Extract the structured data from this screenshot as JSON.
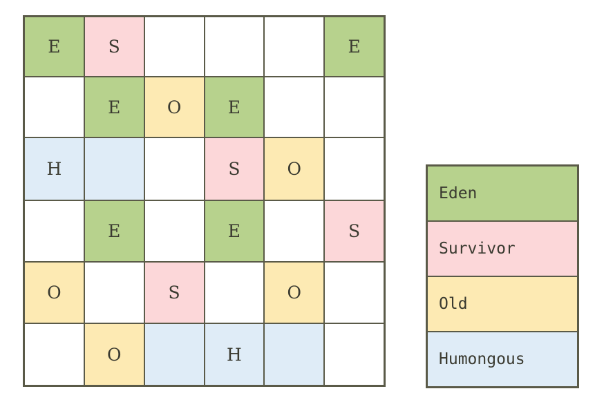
{
  "colors": {
    "eden": "#b7d28d",
    "survivor": "#fcd7d9",
    "old": "#fdeab3",
    "humongous": "#dfecf7",
    "free": "#ffffff"
  },
  "legend": [
    {
      "type": "eden",
      "label": "Eden"
    },
    {
      "type": "survivor",
      "label": "Survivor"
    },
    {
      "type": "old",
      "label": "Old"
    },
    {
      "type": "humongous",
      "label": "Humongous"
    }
  ],
  "grid": [
    [
      {
        "type": "eden",
        "label": "E"
      },
      {
        "type": "survivor",
        "label": "S"
      },
      {
        "type": "free",
        "label": ""
      },
      {
        "type": "free",
        "label": ""
      },
      {
        "type": "free",
        "label": ""
      },
      {
        "type": "eden",
        "label": "E"
      }
    ],
    [
      {
        "type": "free",
        "label": ""
      },
      {
        "type": "eden",
        "label": "E"
      },
      {
        "type": "old",
        "label": "O"
      },
      {
        "type": "eden",
        "label": "E"
      },
      {
        "type": "free",
        "label": ""
      },
      {
        "type": "free",
        "label": ""
      }
    ],
    [
      {
        "type": "humongous",
        "label": "H"
      },
      {
        "type": "humongous",
        "label": ""
      },
      {
        "type": "free",
        "label": ""
      },
      {
        "type": "survivor",
        "label": "S"
      },
      {
        "type": "old",
        "label": "O"
      },
      {
        "type": "free",
        "label": ""
      }
    ],
    [
      {
        "type": "free",
        "label": ""
      },
      {
        "type": "eden",
        "label": "E"
      },
      {
        "type": "free",
        "label": ""
      },
      {
        "type": "eden",
        "label": "E"
      },
      {
        "type": "free",
        "label": ""
      },
      {
        "type": "survivor",
        "label": "S"
      }
    ],
    [
      {
        "type": "old",
        "label": "O"
      },
      {
        "type": "free",
        "label": ""
      },
      {
        "type": "survivor",
        "label": "S"
      },
      {
        "type": "free",
        "label": ""
      },
      {
        "type": "old",
        "label": "O"
      },
      {
        "type": "free",
        "label": ""
      }
    ],
    [
      {
        "type": "free",
        "label": ""
      },
      {
        "type": "old",
        "label": "O"
      },
      {
        "type": "humongous",
        "label": ""
      },
      {
        "type": "humongous",
        "label": "H"
      },
      {
        "type": "humongous",
        "label": ""
      },
      {
        "type": "free",
        "label": ""
      }
    ]
  ]
}
